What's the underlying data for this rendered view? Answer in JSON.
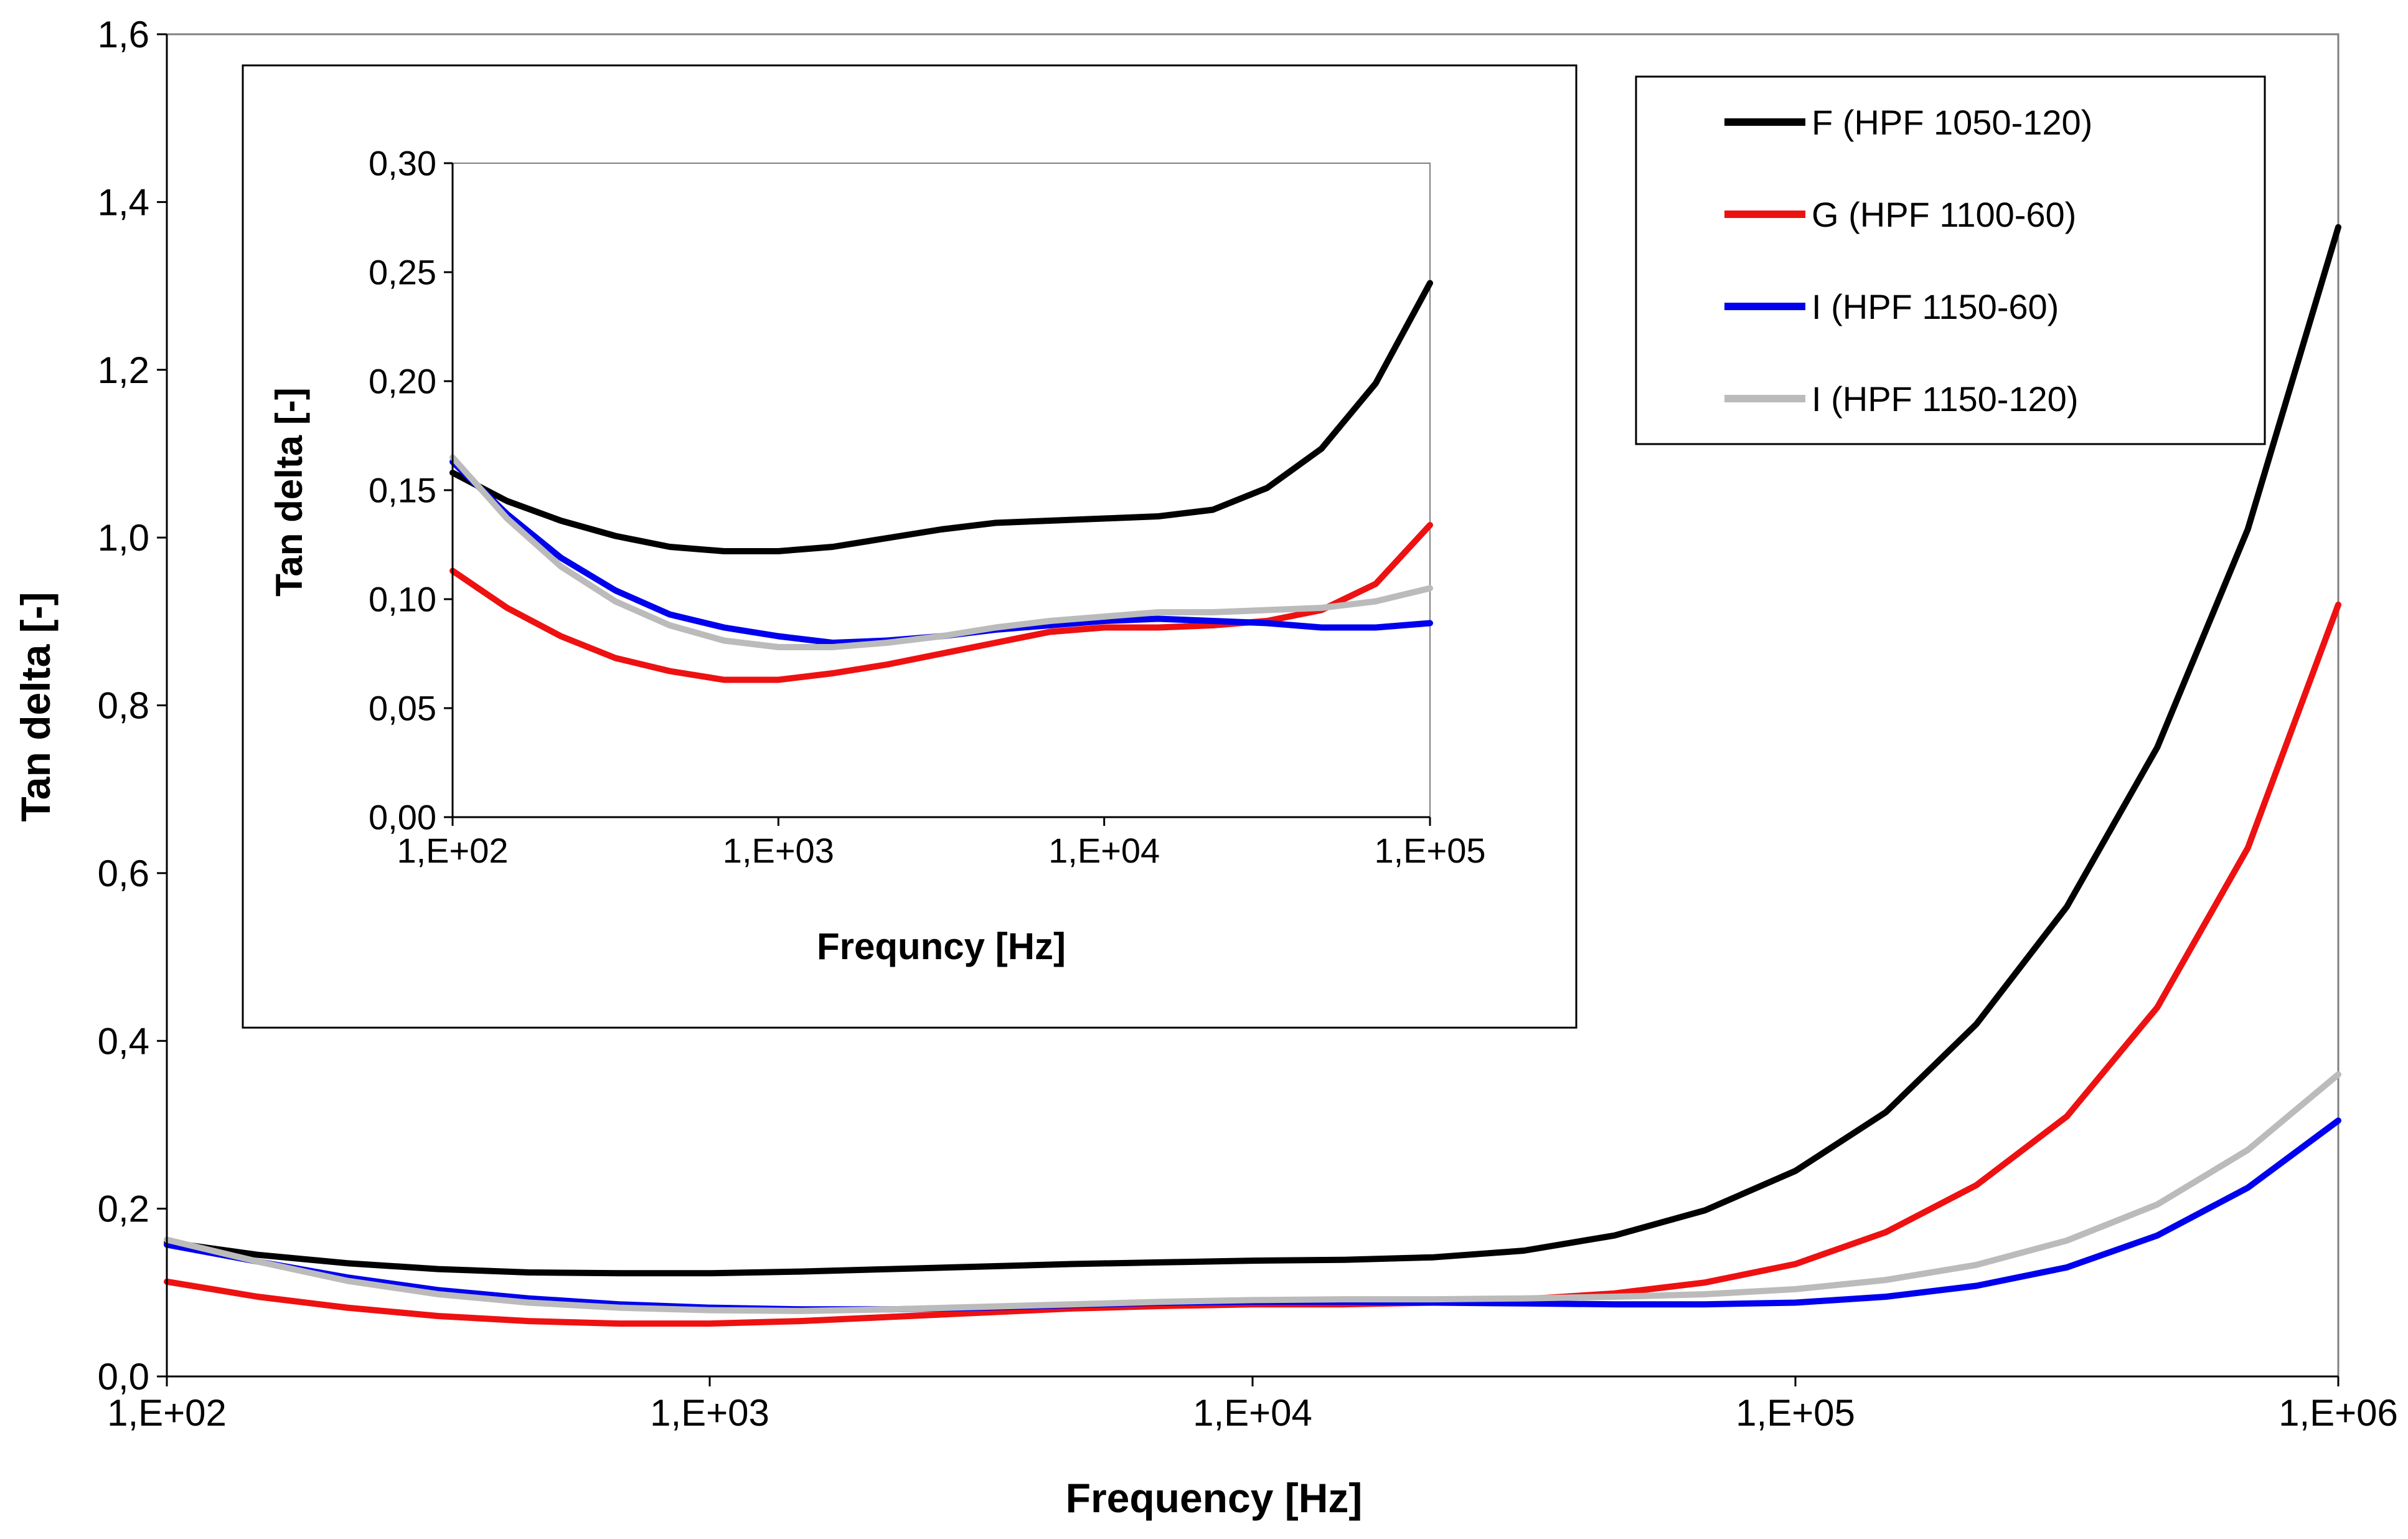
{
  "chart_data": [
    {
      "id": "main",
      "type": "line",
      "title": "",
      "xlabel": "Frequency [Hz]",
      "ylabel": "Tan delta [-]",
      "xscale": "log",
      "xlim": [
        100,
        1000000
      ],
      "ylim": [
        0,
        1.6
      ],
      "xticks": [
        100,
        1000,
        10000,
        100000,
        1000000
      ],
      "xtick_labels": [
        "1,E+02",
        "1,E+03",
        "1,E+04",
        "1,E+05",
        "1,E+06"
      ],
      "yticks": [
        0,
        0.2,
        0.4,
        0.6,
        0.8,
        1.0,
        1.2,
        1.4,
        1.6
      ],
      "ytick_labels": [
        "0,0",
        "0,2",
        "0,4",
        "0,6",
        "0,8",
        "1,0",
        "1,2",
        "1,4",
        "1,6"
      ],
      "grid": false,
      "legend": "top-right",
      "x": [
        100,
        147,
        215,
        316,
        464,
        681,
        1000,
        1468,
        2154,
        3162,
        4642,
        6813,
        10000,
        14678,
        21544,
        31623,
        46416,
        68129,
        100000,
        146780,
        215443,
        316228,
        464159,
        681292,
        1000000
      ],
      "series": [
        {
          "name": "F (HPF 1050-120)",
          "color": "#000000",
          "values": [
            0.16,
            0.145,
            0.135,
            0.128,
            0.124,
            0.123,
            0.123,
            0.125,
            0.128,
            0.131,
            0.134,
            0.136,
            0.138,
            0.139,
            0.142,
            0.15,
            0.168,
            0.198,
            0.245,
            0.315,
            0.42,
            0.56,
            0.75,
            1.01,
            1.37
          ]
        },
        {
          "name": "G (HPF 1100-60)",
          "color": "#ee1111",
          "values": [
            0.113,
            0.095,
            0.082,
            0.072,
            0.066,
            0.063,
            0.063,
            0.066,
            0.071,
            0.076,
            0.081,
            0.084,
            0.086,
            0.086,
            0.088,
            0.092,
            0.099,
            0.112,
            0.134,
            0.172,
            0.228,
            0.31,
            0.44,
            0.63,
            0.92
          ]
        },
        {
          "name": "I (HPF 1150-60)",
          "color": "#0000ee",
          "values": [
            0.157,
            0.137,
            0.118,
            0.103,
            0.093,
            0.086,
            0.082,
            0.08,
            0.08,
            0.082,
            0.085,
            0.088,
            0.089,
            0.089,
            0.088,
            0.087,
            0.086,
            0.086,
            0.088,
            0.095,
            0.108,
            0.13,
            0.168,
            0.225,
            0.305
          ]
        },
        {
          "name": "I (HPF 1150-120)",
          "color": "#bbbbbb",
          "values": [
            0.163,
            0.137,
            0.114,
            0.098,
            0.088,
            0.082,
            0.079,
            0.078,
            0.08,
            0.083,
            0.086,
            0.089,
            0.091,
            0.092,
            0.092,
            0.093,
            0.095,
            0.098,
            0.104,
            0.115,
            0.133,
            0.162,
            0.205,
            0.27,
            0.36
          ]
        }
      ]
    },
    {
      "id": "inset",
      "type": "line",
      "title": "",
      "xlabel": "Frequncy [Hz]",
      "ylabel": "Tan delta [-]",
      "xscale": "log",
      "xlim": [
        100,
        100000
      ],
      "ylim": [
        0,
        0.3
      ],
      "xticks": [
        100,
        1000,
        10000,
        100000
      ],
      "xtick_labels": [
        "1,E+02",
        "1,E+03",
        "1,E+04",
        "1,E+05"
      ],
      "yticks": [
        0,
        0.05,
        0.1,
        0.15,
        0.2,
        0.25,
        0.3
      ],
      "ytick_labels": [
        "0,00",
        "0,05",
        "0,10",
        "0,15",
        "0,20",
        "0,25",
        "0,30"
      ],
      "grid": false,
      "x": [
        100,
        147,
        215,
        316,
        464,
        681,
        1000,
        1468,
        2154,
        3162,
        4642,
        6813,
        10000,
        14678,
        21544,
        31623,
        46416,
        68129,
        100000
      ],
      "series": [
        {
          "name": "F (HPF 1050-120)",
          "color": "#000000",
          "values": [
            0.158,
            0.145,
            0.136,
            0.129,
            0.124,
            0.122,
            0.122,
            0.124,
            0.128,
            0.132,
            0.135,
            0.136,
            0.137,
            0.138,
            0.141,
            0.151,
            0.169,
            0.199,
            0.245
          ]
        },
        {
          "name": "G (HPF 1100-60)",
          "color": "#ee1111",
          "values": [
            0.113,
            0.096,
            0.083,
            0.073,
            0.067,
            0.063,
            0.063,
            0.066,
            0.07,
            0.075,
            0.08,
            0.085,
            0.087,
            0.087,
            0.088,
            0.09,
            0.095,
            0.107,
            0.134
          ]
        },
        {
          "name": "I (HPF 1150-60)",
          "color": "#0000ee",
          "values": [
            0.163,
            0.139,
            0.119,
            0.104,
            0.093,
            0.087,
            0.083,
            0.08,
            0.081,
            0.083,
            0.086,
            0.088,
            0.09,
            0.091,
            0.09,
            0.089,
            0.087,
            0.087,
            0.089
          ]
        },
        {
          "name": "I (HPF 1150-120)",
          "color": "#bbbbbb",
          "values": [
            0.165,
            0.137,
            0.115,
            0.099,
            0.088,
            0.081,
            0.078,
            0.078,
            0.08,
            0.083,
            0.087,
            0.09,
            0.092,
            0.094,
            0.094,
            0.095,
            0.096,
            0.099,
            0.105
          ]
        }
      ]
    }
  ]
}
